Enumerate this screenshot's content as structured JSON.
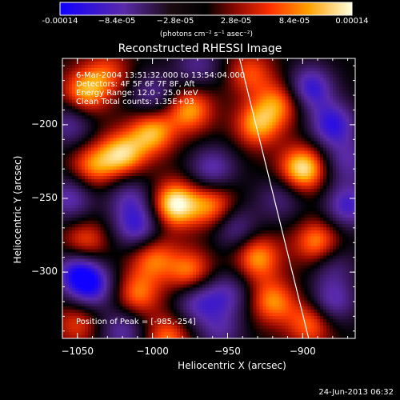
{
  "colorbar": {
    "ticks": [
      "-0.00014",
      "−8.4e-05",
      "−2.8e-05",
      "2.8e-05",
      "8.4e-05",
      "0.00014"
    ],
    "units": "(photons cm⁻² s⁻¹ asec⁻²)"
  },
  "plot": {
    "title": "Reconstructed RHESSI Image",
    "info": [
      "6-Mar-2004 13:51:32.000 to 13:54:04.000",
      "Detectors: 4F 5F 6F 7F 8F, Aft",
      "Energy Range: 12.0 - 25.0 keV",
      "Clean     Total counts: 1.35E+03"
    ],
    "peak_label": "Position of Peak = [-985,-254]",
    "footer_date": "24-Jun-2013 06:32"
  },
  "chart_data": {
    "type": "heatmap",
    "title": "Reconstructed RHESSI Image",
    "xlabel": "Heliocentric X (arcsec)",
    "ylabel": "Heliocentric Y (arcsec)",
    "xlim": [
      -1060,
      -865
    ],
    "ylim": [
      -345,
      -155
    ],
    "x_ticks": [
      -1050,
      -1000,
      -950,
      -900
    ],
    "x_tick_labels": [
      "−1050",
      "−1000",
      "−950",
      "−900"
    ],
    "y_ticks": [
      -200,
      -250,
      -300
    ],
    "y_tick_labels": [
      "−200",
      "−250",
      "−300"
    ],
    "colorbar_range": [
      -0.00014,
      0.00014
    ],
    "colormap": [
      "#1000ff",
      "#5a2aa8",
      "#000000",
      "#a01000",
      "#ff4000",
      "#ffb000",
      "#ffffe0"
    ],
    "peak_position": [
      -985,
      -254
    ],
    "limb_line": [
      [
        -942,
        -155
      ],
      [
        -896,
        -345
      ]
    ],
    "blobs": [
      {
        "x": -985,
        "y": -254,
        "a": 1.0
      },
      {
        "x": -900,
        "y": -230,
        "a": 0.95
      },
      {
        "x": -960,
        "y": -255,
        "a": 0.65
      },
      {
        "x": -1000,
        "y": -205,
        "a": 0.75
      },
      {
        "x": -1020,
        "y": -220,
        "a": 0.8
      },
      {
        "x": -1045,
        "y": -178,
        "a": 0.7
      },
      {
        "x": -1040,
        "y": -228,
        "a": 0.6
      },
      {
        "x": -975,
        "y": -190,
        "a": 0.7
      },
      {
        "x": -930,
        "y": -200,
        "a": 0.7
      },
      {
        "x": -915,
        "y": -185,
        "a": 0.6
      },
      {
        "x": -935,
        "y": -165,
        "a": 0.5
      },
      {
        "x": -890,
        "y": -280,
        "a": 0.7
      },
      {
        "x": -930,
        "y": -290,
        "a": 0.7
      },
      {
        "x": -920,
        "y": -320,
        "a": 0.65
      },
      {
        "x": -975,
        "y": -300,
        "a": 0.65
      },
      {
        "x": -1000,
        "y": -290,
        "a": 0.6
      },
      {
        "x": -1010,
        "y": -315,
        "a": 0.6
      },
      {
        "x": -1045,
        "y": -280,
        "a": 0.55
      },
      {
        "x": -990,
        "y": -345,
        "a": 0.6
      },
      {
        "x": -895,
        "y": -335,
        "a": 0.6
      },
      {
        "x": -1050,
        "y": -335,
        "a": 0.45
      },
      {
        "x": -1030,
        "y": -165,
        "a": 0.45
      },
      {
        "x": -1055,
        "y": -250,
        "a": -0.6
      },
      {
        "x": -1040,
        "y": -310,
        "a": -0.7
      },
      {
        "x": -1050,
        "y": -300,
        "a": -0.8
      },
      {
        "x": -1010,
        "y": -270,
        "a": -0.7
      },
      {
        "x": -1015,
        "y": -250,
        "a": -0.5
      },
      {
        "x": -895,
        "y": -175,
        "a": -0.8
      },
      {
        "x": -880,
        "y": -200,
        "a": -0.8
      },
      {
        "x": -870,
        "y": -255,
        "a": -0.7
      },
      {
        "x": -880,
        "y": -320,
        "a": -0.6
      },
      {
        "x": -880,
        "y": -295,
        "a": -0.4
      },
      {
        "x": -960,
        "y": -230,
        "a": -0.6
      },
      {
        "x": -945,
        "y": -270,
        "a": -0.5
      },
      {
        "x": -970,
        "y": -320,
        "a": -0.6
      },
      {
        "x": -1000,
        "y": -180,
        "a": -0.5
      },
      {
        "x": -950,
        "y": -315,
        "a": -0.5
      },
      {
        "x": -1020,
        "y": -340,
        "a": -0.55
      },
      {
        "x": -1055,
        "y": -200,
        "a": -0.5
      },
      {
        "x": -970,
        "y": -160,
        "a": -0.45
      },
      {
        "x": -915,
        "y": -250,
        "a": -0.4
      },
      {
        "x": -955,
        "y": -340,
        "a": -0.45
      },
      {
        "x": -870,
        "y": -225,
        "a": -0.5
      }
    ]
  }
}
